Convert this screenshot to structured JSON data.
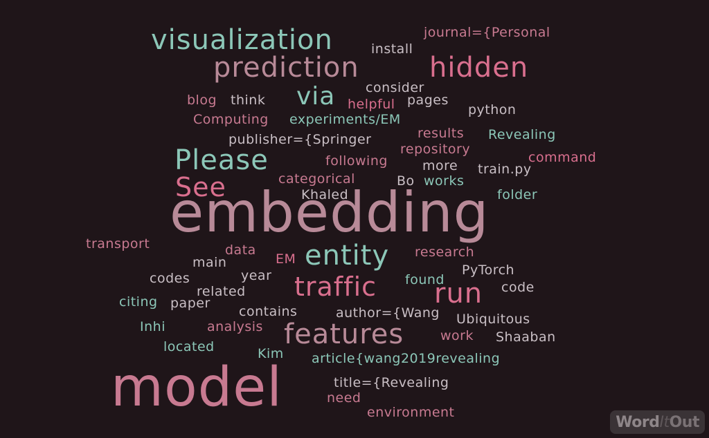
{
  "colors": {
    "background": "#1f1519",
    "teal": "#8cc7b8",
    "pink": "#d96f8e",
    "mauve": "#b88a98",
    "rose": "#c87a91",
    "light": "#c9bfc5"
  },
  "words": [
    {
      "text": "visualization",
      "color": "teal"
    },
    {
      "text": "install",
      "color": "light"
    },
    {
      "text": "journal={Personal",
      "color": "rose"
    },
    {
      "text": "prediction",
      "color": "mauve"
    },
    {
      "text": "hidden",
      "color": "pink"
    },
    {
      "text": "consider",
      "color": "light"
    },
    {
      "text": "blog",
      "color": "rose"
    },
    {
      "text": "think",
      "color": "light"
    },
    {
      "text": "via",
      "color": "teal"
    },
    {
      "text": "helpful",
      "color": "pink"
    },
    {
      "text": "pages",
      "color": "light"
    },
    {
      "text": "python",
      "color": "light"
    },
    {
      "text": "Computing",
      "color": "rose"
    },
    {
      "text": "experiments/EM",
      "color": "teal"
    },
    {
      "text": "results",
      "color": "rose"
    },
    {
      "text": "Revealing",
      "color": "teal"
    },
    {
      "text": "publisher={Springer",
      "color": "light"
    },
    {
      "text": "repository",
      "color": "rose"
    },
    {
      "text": "Please",
      "color": "teal"
    },
    {
      "text": "following",
      "color": "rose"
    },
    {
      "text": "more",
      "color": "light"
    },
    {
      "text": "train.py",
      "color": "light"
    },
    {
      "text": "command",
      "color": "pink"
    },
    {
      "text": "See",
      "color": "pink"
    },
    {
      "text": "categorical",
      "color": "rose"
    },
    {
      "text": "Bo",
      "color": "light"
    },
    {
      "text": "works",
      "color": "teal"
    },
    {
      "text": "Khaled",
      "color": "light"
    },
    {
      "text": "folder",
      "color": "teal"
    },
    {
      "text": "embedding",
      "color": "mauve"
    },
    {
      "text": "transport",
      "color": "rose"
    },
    {
      "text": "data",
      "color": "rose"
    },
    {
      "text": "EM",
      "color": "pink"
    },
    {
      "text": "entity",
      "color": "teal"
    },
    {
      "text": "research",
      "color": "rose"
    },
    {
      "text": "main",
      "color": "light"
    },
    {
      "text": "PyTorch",
      "color": "light"
    },
    {
      "text": "codes",
      "color": "light"
    },
    {
      "text": "year",
      "color": "light"
    },
    {
      "text": "traffic",
      "color": "pink"
    },
    {
      "text": "found",
      "color": "teal"
    },
    {
      "text": "code",
      "color": "light"
    },
    {
      "text": "related",
      "color": "light"
    },
    {
      "text": "run",
      "color": "pink"
    },
    {
      "text": "citing",
      "color": "teal"
    },
    {
      "text": "paper",
      "color": "light"
    },
    {
      "text": "contains",
      "color": "light"
    },
    {
      "text": "author={Wang",
      "color": "light"
    },
    {
      "text": "Ubiquitous",
      "color": "light"
    },
    {
      "text": "Inhi",
      "color": "teal"
    },
    {
      "text": "analysis",
      "color": "rose"
    },
    {
      "text": "features",
      "color": "mauve"
    },
    {
      "text": "work",
      "color": "rose"
    },
    {
      "text": "Shaaban",
      "color": "light"
    },
    {
      "text": "located",
      "color": "teal"
    },
    {
      "text": "Kim",
      "color": "teal"
    },
    {
      "text": "article{wang2019revealing",
      "color": "teal"
    },
    {
      "text": "model",
      "color": "rose"
    },
    {
      "text": "title={Revealing",
      "color": "light"
    },
    {
      "text": "need",
      "color": "rose"
    },
    {
      "text": "environment",
      "color": "rose"
    }
  ],
  "logo": {
    "part1": "Word",
    "part2": "It",
    "part3": "Out"
  }
}
